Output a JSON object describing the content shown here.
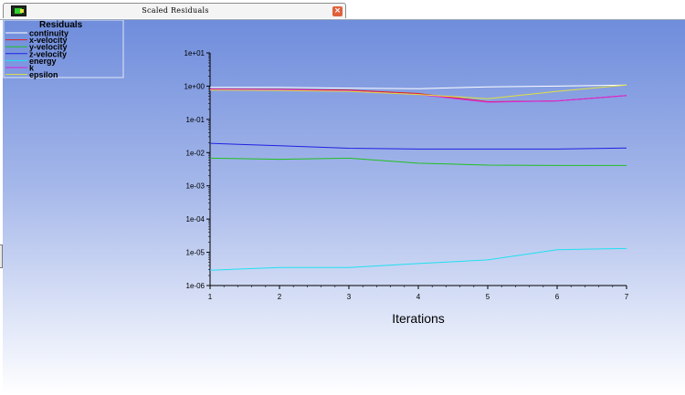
{
  "window": {
    "tab_title": "Scaled Residuals",
    "close_glyph": "×",
    "tab_icon": "fluent-graphics-icon"
  },
  "colors": {
    "continuity": "#ffffff",
    "x-velocity": "#e02020",
    "y-velocity": "#20c020",
    "z-velocity": "#2020e0",
    "energy": "#20e0f0",
    "k": "#e020e0",
    "epsilon": "#e0e040"
  },
  "chart_data": {
    "type": "line",
    "title": "Residuals",
    "xlabel": "Iterations",
    "ylabel": "",
    "yscale": "log",
    "xlim": [
      1,
      7
    ],
    "ylim": [
      1e-06,
      10
    ],
    "x_ticks": [
      "1",
      "2",
      "3",
      "4",
      "5",
      "6",
      "7"
    ],
    "y_ticks": [
      "1e+01",
      "1e+00",
      "1e-01",
      "1e-02",
      "1e-03",
      "1e-04",
      "1e-05",
      "1e-06"
    ],
    "legend_placement": "top-left",
    "grid": false,
    "x": [
      1,
      2,
      3,
      4,
      5,
      6,
      7
    ],
    "series": [
      {
        "name": "continuity",
        "values": [
          0.92,
          0.92,
          0.87,
          0.84,
          0.95,
          1.0,
          1.08
        ]
      },
      {
        "name": "x-velocity",
        "values": [
          0.82,
          0.8,
          0.76,
          0.6,
          0.34,
          0.36,
          0.52
        ]
      },
      {
        "name": "y-velocity",
        "values": [
          0.0068,
          0.0063,
          0.0068,
          0.0048,
          0.0042,
          0.0041,
          0.0041
        ]
      },
      {
        "name": "z-velocity",
        "values": [
          0.019,
          0.016,
          0.0135,
          0.0128,
          0.0128,
          0.0128,
          0.0138
        ]
      },
      {
        "name": "energy",
        "values": [
          2.9e-06,
          3.5e-06,
          3.5e-06,
          4.6e-06,
          5.9e-06,
          1.2e-05,
          1.3e-05
        ]
      },
      {
        "name": "k",
        "values": [
          0.8,
          0.78,
          0.72,
          0.56,
          0.33,
          0.36,
          0.52
        ]
      },
      {
        "name": "epsilon",
        "values": [
          0.76,
          0.74,
          0.7,
          0.56,
          0.42,
          0.7,
          1.08
        ]
      }
    ]
  }
}
